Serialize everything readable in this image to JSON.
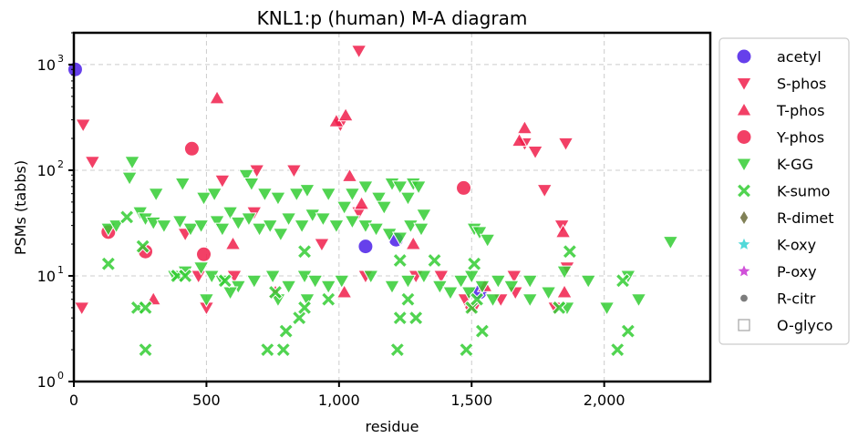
{
  "chart_data": {
    "type": "scatter",
    "title": "KNL1:p (human) M-A diagram",
    "xlabel": "residue",
    "ylabel": "PSMs (tabbs)",
    "x_ticks": [
      "0",
      "500",
      "1,000",
      "1,500",
      "2,000"
    ],
    "y_ticks": [
      "10",
      "10",
      "10",
      "10"
    ],
    "y_tick_exponents": [
      "0",
      "1",
      "2",
      "3"
    ],
    "xlim": [
      0,
      2400
    ],
    "ylim": [
      1,
      2000
    ],
    "yscale": "log",
    "grid": true,
    "legend_position": "right, outside plot",
    "series": [
      {
        "name": "acetyl",
        "marker": "circle",
        "color": "#4b1ee8",
        "points": [
          [
            5,
            900
          ],
          [
            1100,
            19
          ],
          [
            1215,
            22
          ],
          [
            1530,
            7
          ]
        ]
      },
      {
        "name": "S-phos",
        "marker": "triangle-down",
        "color": "#f01e4b",
        "points": [
          [
            35,
            270
          ],
          [
            70,
            120
          ],
          [
            30,
            5
          ],
          [
            1075,
            1350
          ],
          [
            560,
            80
          ],
          [
            690,
            100
          ],
          [
            830,
            100
          ],
          [
            1005,
            270
          ],
          [
            420,
            25
          ],
          [
            470,
            10
          ],
          [
            500,
            5
          ],
          [
            605,
            10
          ],
          [
            680,
            40
          ],
          [
            935,
            20
          ],
          [
            1075,
            40
          ],
          [
            1100,
            10
          ],
          [
            1290,
            10
          ],
          [
            1660,
            10
          ],
          [
            1740,
            150
          ],
          [
            1775,
            65
          ],
          [
            1855,
            180
          ],
          [
            1700,
            180
          ],
          [
            1385,
            10
          ],
          [
            1490,
            5
          ],
          [
            1610,
            6
          ],
          [
            1665,
            7
          ],
          [
            1840,
            30
          ],
          [
            1860,
            12
          ],
          [
            1815,
            5
          ],
          [
            1510,
            5
          ],
          [
            1475,
            6
          ]
        ]
      },
      {
        "name": "T-phos",
        "marker": "triangle-up",
        "color": "#f01e4b",
        "points": [
          [
            540,
            480
          ],
          [
            990,
            290
          ],
          [
            1025,
            330
          ],
          [
            1040,
            88
          ],
          [
            1085,
            48
          ],
          [
            1700,
            250
          ],
          [
            1680,
            190
          ],
          [
            1845,
            26
          ],
          [
            1850,
            7
          ],
          [
            1020,
            7
          ],
          [
            760,
            7
          ],
          [
            600,
            20
          ],
          [
            1280,
            20
          ],
          [
            300,
            6
          ],
          [
            1550,
            8
          ]
        ]
      },
      {
        "name": "Y-phos",
        "marker": "circle",
        "color": "#f01e4b",
        "points": [
          [
            445,
            160
          ],
          [
            1470,
            68
          ],
          [
            130,
            26
          ],
          [
            490,
            16
          ],
          [
            270,
            17
          ]
        ]
      },
      {
        "name": "K-GG",
        "marker": "triangle-down",
        "color": "#32cd32",
        "points": [
          [
            220,
            120
          ],
          [
            210,
            85
          ],
          [
            310,
            60
          ],
          [
            410,
            75
          ],
          [
            490,
            55
          ],
          [
            530,
            60
          ],
          [
            590,
            40
          ],
          [
            650,
            90
          ],
          [
            670,
            75
          ],
          [
            720,
            60
          ],
          [
            770,
            55
          ],
          [
            840,
            60
          ],
          [
            880,
            65
          ],
          [
            960,
            60
          ],
          [
            1020,
            45
          ],
          [
            1050,
            60
          ],
          [
            1100,
            70
          ],
          [
            1150,
            55
          ],
          [
            1170,
            45
          ],
          [
            1200,
            75
          ],
          [
            1230,
            70
          ],
          [
            1260,
            55
          ],
          [
            1280,
            75
          ],
          [
            1300,
            70
          ],
          [
            1320,
            38
          ],
          [
            130,
            28
          ],
          [
            160,
            30
          ],
          [
            250,
            40
          ],
          [
            270,
            35
          ],
          [
            300,
            32
          ],
          [
            340,
            30
          ],
          [
            400,
            33
          ],
          [
            440,
            28
          ],
          [
            480,
            30
          ],
          [
            540,
            33
          ],
          [
            560,
            28
          ],
          [
            620,
            32
          ],
          [
            660,
            35
          ],
          [
            700,
            28
          ],
          [
            740,
            30
          ],
          [
            780,
            25
          ],
          [
            810,
            35
          ],
          [
            860,
            30
          ],
          [
            900,
            38
          ],
          [
            940,
            35
          ],
          [
            990,
            30
          ],
          [
            1050,
            33
          ],
          [
            1100,
            30
          ],
          [
            1140,
            28
          ],
          [
            1190,
            25
          ],
          [
            1230,
            23
          ],
          [
            1270,
            30
          ],
          [
            1310,
            28
          ],
          [
            1510,
            28
          ],
          [
            1530,
            26
          ],
          [
            1560,
            22
          ],
          [
            380,
            10
          ],
          [
            420,
            11
          ],
          [
            480,
            12
          ],
          [
            520,
            10
          ],
          [
            560,
            9
          ],
          [
            620,
            8
          ],
          [
            680,
            9
          ],
          [
            750,
            10
          ],
          [
            810,
            8
          ],
          [
            870,
            10
          ],
          [
            910,
            9
          ],
          [
            960,
            8
          ],
          [
            1010,
            9
          ],
          [
            1120,
            10
          ],
          [
            1200,
            8
          ],
          [
            1260,
            9
          ],
          [
            1320,
            10
          ],
          [
            1380,
            8
          ],
          [
            1420,
            7
          ],
          [
            1460,
            9
          ],
          [
            1500,
            10
          ],
          [
            1540,
            8
          ],
          [
            1600,
            9
          ],
          [
            1650,
            8
          ],
          [
            1720,
            9
          ],
          [
            1790,
            7
          ],
          [
            1850,
            11
          ],
          [
            1940,
            9
          ],
          [
            2010,
            5
          ],
          [
            2090,
            10
          ],
          [
            2130,
            6
          ],
          [
            2250,
            21
          ],
          [
            500,
            6
          ],
          [
            590,
            7
          ],
          [
            770,
            6
          ],
          [
            880,
            6
          ],
          [
            1490,
            7
          ],
          [
            1580,
            6
          ],
          [
            1720,
            6
          ],
          [
            1860,
            5
          ]
        ]
      },
      {
        "name": "K-sumo",
        "marker": "x-filled",
        "color": "#32cd32",
        "points": [
          [
            130,
            13
          ],
          [
            200,
            36
          ],
          [
            240,
            5
          ],
          [
            260,
            19
          ],
          [
            270,
            5
          ],
          [
            390,
            10
          ],
          [
            420,
            10
          ],
          [
            570,
            9
          ],
          [
            760,
            7
          ],
          [
            870,
            17
          ],
          [
            960,
            6
          ],
          [
            1230,
            4
          ],
          [
            1260,
            6
          ],
          [
            1290,
            4
          ],
          [
            1360,
            14
          ],
          [
            1510,
            13
          ],
          [
            1540,
            3
          ],
          [
            1870,
            17
          ],
          [
            270,
            2
          ],
          [
            730,
            2
          ],
          [
            790,
            2
          ],
          [
            800,
            3
          ],
          [
            850,
            4
          ],
          [
            870,
            5
          ],
          [
            1220,
            2
          ],
          [
            1480,
            2
          ],
          [
            1500,
            5
          ],
          [
            1520,
            6
          ],
          [
            2050,
            2
          ],
          [
            2090,
            3
          ],
          [
            2070,
            9
          ],
          [
            1830,
            5
          ],
          [
            1230,
            14
          ]
        ]
      },
      {
        "name": "R-dimet",
        "marker": "diamond",
        "color": "#6b6b3a",
        "points": []
      },
      {
        "name": "K-oxy",
        "marker": "star",
        "color": "#32d2d2",
        "points": []
      },
      {
        "name": "P-oxy",
        "marker": "star",
        "color": "#c832d2",
        "points": []
      },
      {
        "name": "R-citr",
        "marker": "small-circle",
        "color": "#666666",
        "points": []
      },
      {
        "name": "O-glyco",
        "marker": "square-open",
        "color": "#aaaaaa",
        "points": []
      }
    ]
  }
}
